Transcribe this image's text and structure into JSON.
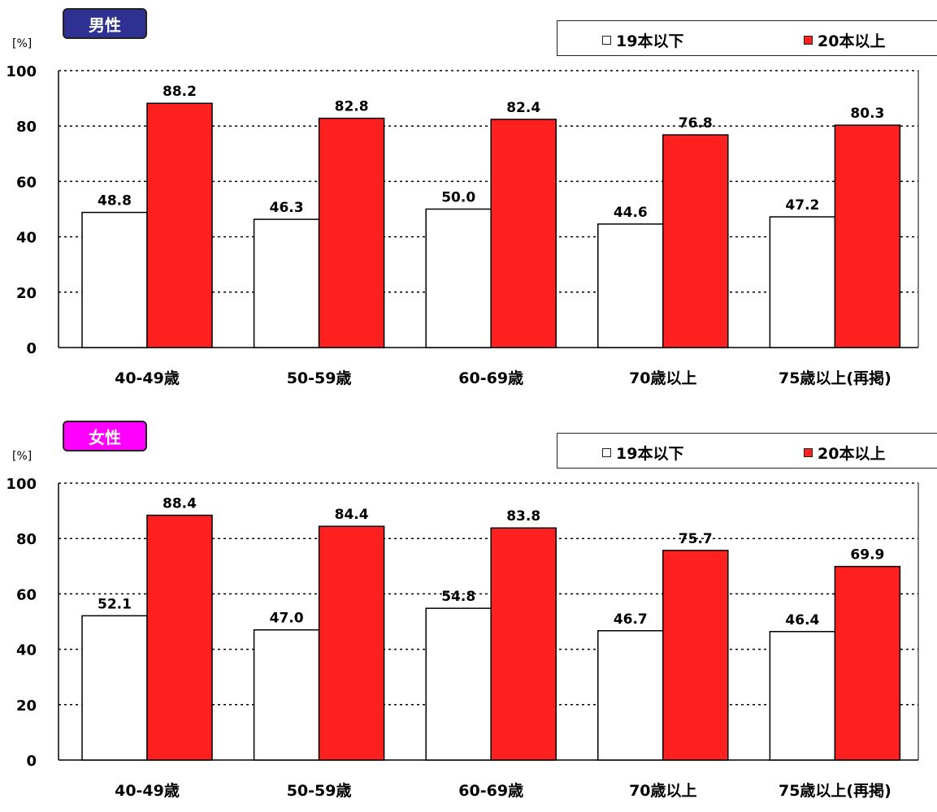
{
  "colors": {
    "red": "#ff2020",
    "white": "#ffffff",
    "male_badge": "#2e3192",
    "female_badge": "#ff00ff"
  },
  "chart_data": [
    {
      "type": "bar",
      "title": "男性",
      "unit": "[%]",
      "ylim": [
        0,
        100
      ],
      "yticks": [
        "0",
        "20",
        "40",
        "60",
        "80",
        "100"
      ],
      "grid": true,
      "legend_position": "top-right",
      "categories": [
        "40-49歳",
        "50-59歳",
        "60-69歳",
        "70歳以上",
        "75歳以上(再掲)"
      ],
      "series": [
        {
          "name": "19本以下",
          "color": "#ffffff",
          "values": [
            48.8,
            46.3,
            50.0,
            44.6,
            47.2
          ],
          "labels": [
            "48.8",
            "46.3",
            "50.0",
            "44.6",
            "47.2"
          ]
        },
        {
          "name": "20本以上",
          "color": "#ff2020",
          "values": [
            88.2,
            82.8,
            82.4,
            76.8,
            80.3
          ],
          "labels": [
            "88.2",
            "82.8",
            "82.4",
            "76.8",
            "80.3"
          ]
        }
      ]
    },
    {
      "type": "bar",
      "title": "女性",
      "unit": "[%]",
      "ylim": [
        0,
        100
      ],
      "yticks": [
        "0",
        "20",
        "40",
        "60",
        "80",
        "100"
      ],
      "grid": true,
      "legend_position": "top-right",
      "categories": [
        "40-49歳",
        "50-59歳",
        "60-69歳",
        "70歳以上",
        "75歳以上(再掲)"
      ],
      "series": [
        {
          "name": "19本以下",
          "color": "#ffffff",
          "values": [
            52.1,
            47.0,
            54.8,
            46.7,
            46.4
          ],
          "labels": [
            "52.1",
            "47.0",
            "54.8",
            "46.7",
            "46.4"
          ]
        },
        {
          "name": "20本以上",
          "color": "#ff2020",
          "values": [
            88.4,
            84.4,
            83.8,
            75.7,
            69.9
          ],
          "labels": [
            "88.4",
            "84.4",
            "83.8",
            "75.7",
            "69.9"
          ]
        }
      ]
    }
  ]
}
